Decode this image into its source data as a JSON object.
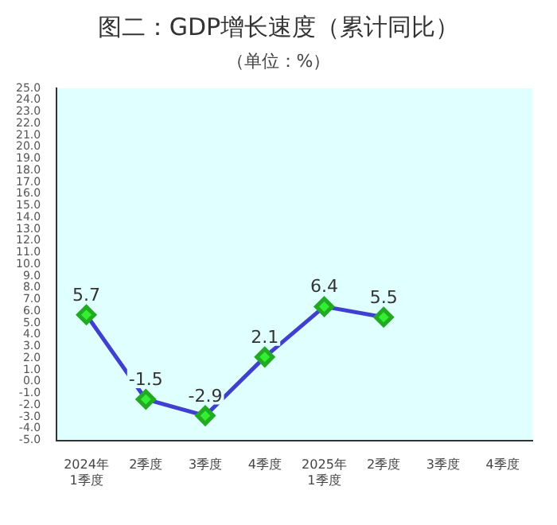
{
  "chart_data": {
    "type": "line",
    "title": "图二：GDP增长速度（累计同比）",
    "subtitle": "（单位：%）",
    "categories": [
      "2024年1季度",
      "2季度",
      "3季度",
      "4季度",
      "2025年1季度",
      "2季度",
      "3季度",
      "4季度"
    ],
    "series": [
      {
        "color": "#4040d0",
        "values": [
          5.7,
          -1.5,
          -2.9,
          2.1,
          6.4,
          5.5,
          null,
          null
        ]
      }
    ],
    "ylim": [
      -5,
      25
    ],
    "yticks": [
      {
        "value": -5,
        "label": "-5.0"
      },
      {
        "value": -4,
        "label": "-4.0"
      },
      {
        "value": -3,
        "label": "-3.0"
      },
      {
        "value": -2,
        "label": "-2.0"
      },
      {
        "value": -1,
        "label": "-1.0"
      },
      {
        "value": 0,
        "label": "0.0"
      },
      {
        "value": 1,
        "label": "1.0"
      },
      {
        "value": 2,
        "label": "2.0"
      },
      {
        "value": 3,
        "label": "3.0"
      },
      {
        "value": 4,
        "label": "4.0"
      },
      {
        "value": 5,
        "label": "5.0"
      },
      {
        "value": 6,
        "label": "6.0"
      },
      {
        "value": 7,
        "label": "7.0"
      },
      {
        "value": 8,
        "label": "8.0"
      },
      {
        "value": 9,
        "label": "9.0"
      },
      {
        "value": 10,
        "label": "10.0"
      },
      {
        "value": 11,
        "label": "11.0"
      },
      {
        "value": 12,
        "label": "12.0"
      },
      {
        "value": 13,
        "label": "13.0"
      },
      {
        "value": 14,
        "label": "14.0"
      },
      {
        "value": 15,
        "label": "15.0"
      },
      {
        "value": 16,
        "label": "16.0"
      },
      {
        "value": 17,
        "label": "17.0"
      },
      {
        "value": 18,
        "label": "18.0"
      },
      {
        "value": 19,
        "label": "19.0"
      },
      {
        "value": 20,
        "label": "20.0"
      },
      {
        "value": 21,
        "label": "21.0"
      },
      {
        "value": 22,
        "label": "22.0"
      },
      {
        "value": 23,
        "label": "23.0"
      },
      {
        "value": 24,
        "label": "24.0"
      },
      {
        "value": 25,
        "label": "25.0"
      }
    ],
    "grid": false,
    "legend": false,
    "marker": "diamond",
    "line_style": "solid",
    "data_labels": true
  }
}
